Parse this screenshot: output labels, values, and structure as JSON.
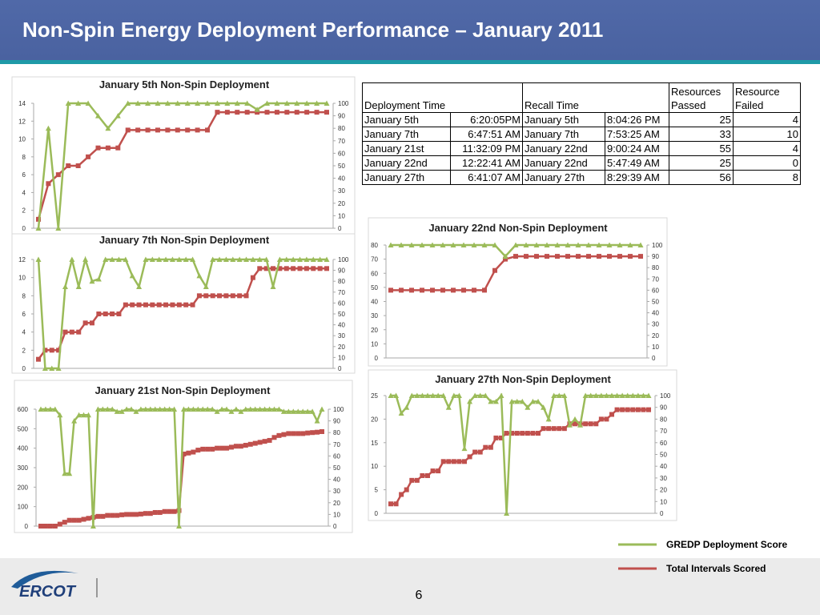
{
  "title": "Non-Spin Energy Deployment Performance – January 2011",
  "table": {
    "headers": [
      "Deployment Time",
      "Recall Time",
      "Resources Passed",
      "Resource Failed"
    ],
    "rows": [
      [
        "January 5th",
        "6:20:05PM",
        "January 5th",
        "8:04:26 PM",
        25,
        4
      ],
      [
        "January 7th",
        "6:47:51 AM",
        "January 7th",
        "7:53:25 AM",
        33,
        10
      ],
      [
        "January 21st",
        "11:32:09 PM",
        "January 22nd",
        "9:00:24 AM",
        55,
        4
      ],
      [
        "January 22nd",
        "12:22:41 AM",
        "January 22nd",
        "5:47:49 AM",
        25,
        0
      ],
      [
        "January 27th",
        "6:41:07 AM",
        "January 27th",
        "8:29:39 AM",
        56,
        8
      ]
    ]
  },
  "chart_data": [
    {
      "type": "line",
      "title": "January 5th Non-Spin Deployment",
      "ylim": [
        0,
        14
      ],
      "yticks": [
        0,
        2,
        4,
        6,
        8,
        10,
        12,
        14
      ],
      "y2lim": [
        0,
        100
      ],
      "y2ticks": [
        0,
        10,
        20,
        30,
        40,
        50,
        60,
        70,
        80,
        90,
        100
      ],
      "series": [
        {
          "color": "#c0504d",
          "marker": "square",
          "values": [
            1,
            5,
            6,
            7,
            7,
            8,
            9,
            9,
            9,
            11,
            11,
            11,
            11,
            11,
            11,
            11,
            11,
            11,
            13,
            13,
            13,
            13,
            13,
            13,
            13,
            13,
            13,
            13,
            13,
            13
          ]
        },
        {
          "color": "#9bbb59",
          "marker": "triangle",
          "axis": "y2",
          "values": [
            0,
            80,
            0,
            100,
            100,
            100,
            90,
            80,
            90,
            100,
            100,
            100,
            100,
            100,
            100,
            100,
            100,
            100,
            100,
            100,
            100,
            100,
            95,
            100,
            100,
            100,
            100,
            100,
            100,
            100
          ]
        }
      ]
    },
    {
      "type": "line",
      "title": "January 7th Non-Spin Deployment",
      "ylim": [
        0,
        12
      ],
      "yticks": [
        0,
        2,
        4,
        6,
        8,
        10,
        12
      ],
      "y2lim": [
        0,
        100
      ],
      "y2ticks": [
        0,
        10,
        20,
        30,
        40,
        50,
        60,
        70,
        80,
        90,
        100
      ],
      "series": [
        {
          "color": "#c0504d",
          "marker": "square",
          "values": [
            1,
            2,
            2,
            2,
            4,
            4,
            4,
            5,
            5,
            6,
            6,
            6,
            6,
            7,
            7,
            7,
            7,
            7,
            7,
            7,
            7,
            7,
            7,
            7,
            8,
            8,
            8,
            8,
            8,
            8,
            8,
            8,
            10,
            11,
            11,
            11,
            11,
            11,
            11,
            11,
            11,
            11,
            11,
            11
          ]
        },
        {
          "color": "#9bbb59",
          "marker": "triangle",
          "axis": "y2",
          "values": [
            100,
            0,
            0,
            0,
            75,
            100,
            75,
            100,
            80,
            82,
            100,
            100,
            100,
            100,
            85,
            75,
            100,
            100,
            100,
            100,
            100,
            100,
            100,
            100,
            85,
            75,
            100,
            100,
            100,
            100,
            100,
            100,
            100,
            100,
            100,
            75,
            100,
            100,
            100,
            100,
            100,
            100,
            100,
            100
          ]
        }
      ]
    },
    {
      "type": "line",
      "title": "January 21st Non-Spin Deployment",
      "ylim": [
        0,
        600
      ],
      "yticks": [
        0,
        100,
        200,
        300,
        400,
        500,
        600
      ],
      "y2lim": [
        0,
        100
      ],
      "y2ticks": [
        0,
        10,
        20,
        30,
        40,
        50,
        60,
        70,
        80,
        90,
        100
      ],
      "series": [
        {
          "color": "#c0504d",
          "marker": "square",
          "values": [
            0,
            0,
            0,
            0,
            10,
            20,
            30,
            30,
            30,
            35,
            40,
            45,
            50,
            50,
            55,
            55,
            55,
            58,
            60,
            60,
            60,
            62,
            65,
            65,
            70,
            70,
            75,
            75,
            75,
            80,
            370,
            375,
            380,
            390,
            395,
            395,
            395,
            400,
            400,
            400,
            405,
            410,
            410,
            415,
            420,
            425,
            430,
            435,
            440,
            455,
            465,
            470,
            475,
            475,
            475,
            475,
            478,
            480,
            482,
            485
          ]
        },
        {
          "color": "#9bbb59",
          "marker": "triangle",
          "axis": "y2",
          "values": [
            100,
            100,
            100,
            100,
            95,
            45,
            45,
            90,
            95,
            95,
            95,
            0,
            100,
            100,
            100,
            100,
            98,
            98,
            100,
            100,
            98,
            100,
            100,
            100,
            100,
            100,
            100,
            100,
            100,
            0,
            100,
            100,
            100,
            100,
            100,
            100,
            100,
            98,
            100,
            100,
            98,
            100,
            98,
            100,
            100,
            100,
            100,
            100,
            100,
            100,
            100,
            98,
            98,
            98,
            98,
            98,
            98,
            98,
            90,
            100
          ]
        }
      ]
    },
    {
      "type": "line",
      "title": "January 22nd Non-Spin Deployment",
      "ylim": [
        0,
        80
      ],
      "yticks": [
        0,
        10,
        20,
        30,
        40,
        50,
        60,
        70,
        80
      ],
      "y2lim": [
        0,
        100
      ],
      "y2ticks": [
        0,
        10,
        20,
        30,
        40,
        50,
        60,
        70,
        80,
        90,
        100
      ],
      "series": [
        {
          "color": "#c0504d",
          "marker": "square",
          "values": [
            48,
            48,
            48,
            48,
            48,
            48,
            48,
            48,
            48,
            48,
            62,
            70,
            72,
            72,
            72,
            72,
            72,
            72,
            72,
            72,
            72,
            72,
            72,
            72,
            72
          ]
        },
        {
          "color": "#9bbb59",
          "marker": "triangle",
          "axis": "y2",
          "values": [
            100,
            100,
            100,
            100,
            100,
            100,
            100,
            100,
            100,
            100,
            100,
            90,
            100,
            100,
            100,
            100,
            100,
            100,
            100,
            100,
            100,
            100,
            100,
            100,
            100
          ]
        }
      ]
    },
    {
      "type": "line",
      "title": "January 27th Non-Spin Deployment",
      "ylim": [
        0,
        25
      ],
      "yticks": [
        0,
        5,
        10,
        15,
        20,
        25
      ],
      "y2lim": [
        0,
        100
      ],
      "y2ticks": [
        0,
        10,
        20,
        30,
        40,
        50,
        60,
        70,
        80,
        90,
        100
      ],
      "series": [
        {
          "color": "#c0504d",
          "marker": "square",
          "values": [
            2,
            2,
            4,
            5,
            7,
            7,
            8,
            8,
            9,
            9,
            11,
            11,
            11,
            11,
            11,
            12,
            13,
            13,
            14,
            14,
            16,
            16,
            17,
            17,
            17,
            17,
            17,
            17,
            17,
            18,
            18,
            18,
            18,
            18,
            19,
            19,
            19,
            19,
            19,
            19,
            20,
            20,
            21,
            22,
            22,
            22,
            22,
            22,
            22,
            22
          ]
        },
        {
          "color": "#9bbb59",
          "marker": "triangle",
          "axis": "y2",
          "values": [
            100,
            100,
            85,
            90,
            100,
            100,
            100,
            100,
            100,
            100,
            100,
            90,
            100,
            100,
            55,
            95,
            100,
            100,
            100,
            95,
            95,
            100,
            0,
            95,
            95,
            95,
            90,
            95,
            95,
            90,
            80,
            100,
            100,
            100,
            75,
            80,
            75,
            100,
            100,
            100,
            100,
            100,
            100,
            100,
            100,
            100,
            100,
            100,
            100,
            100
          ]
        }
      ]
    }
  ],
  "legend": [
    {
      "label": "GREDP Deployment Score",
      "color": "#9bbb59"
    },
    {
      "label": "Total Intervals Scored",
      "color": "#c0504d"
    }
  ],
  "footer": {
    "logo": "ERCOT",
    "page": "6"
  }
}
